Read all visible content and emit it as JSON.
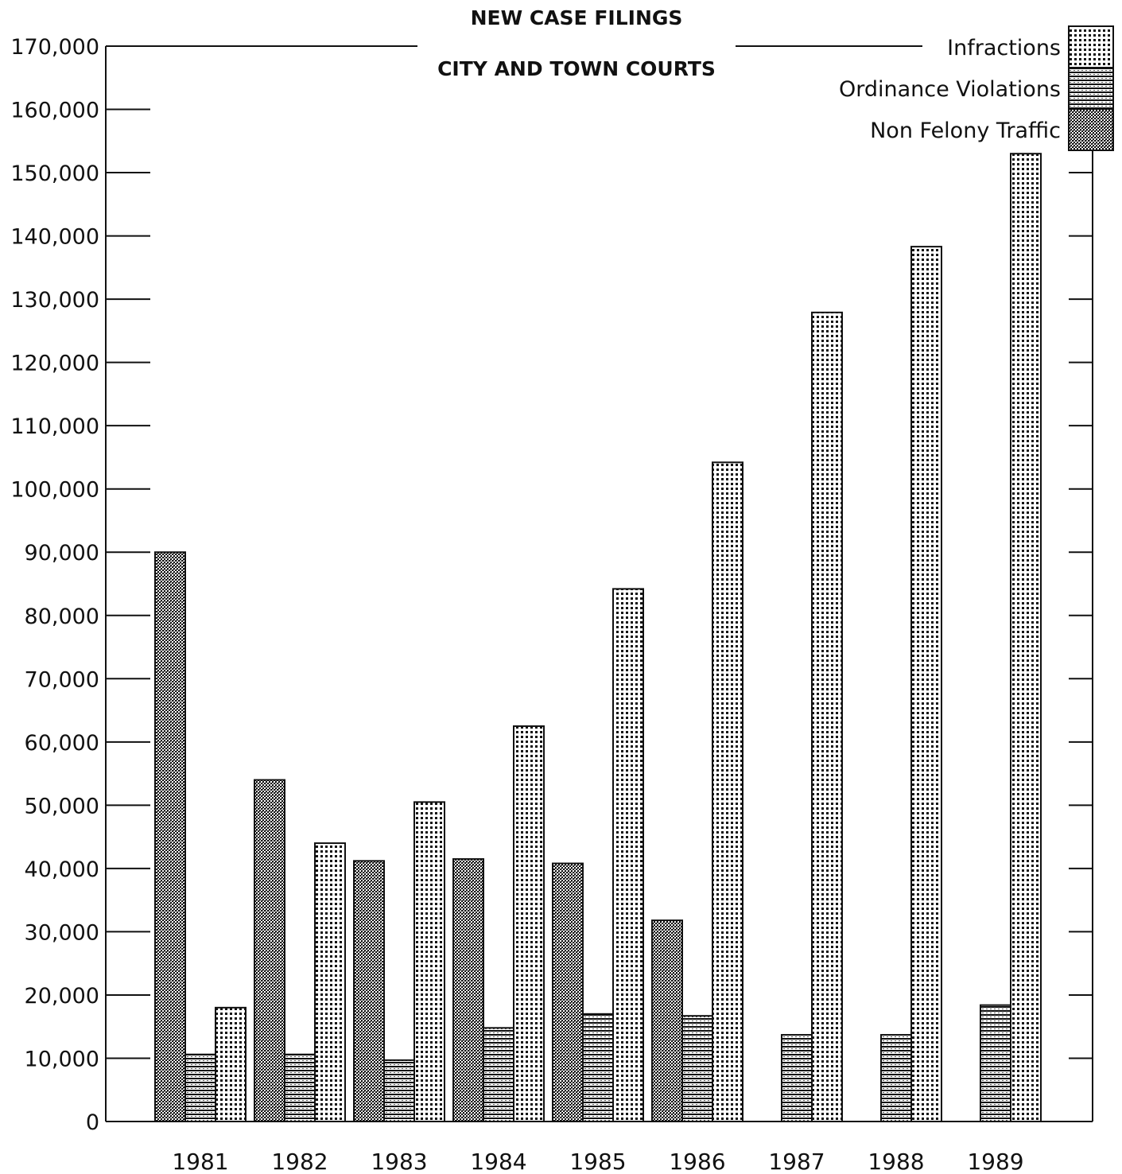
{
  "chart_data": {
    "type": "bar",
    "title": "NEW CASE FILINGS",
    "subtitle": "CITY AND TOWN COURTS",
    "xlabel": "",
    "ylabel": "",
    "categories": [
      "1981",
      "1982",
      "1983",
      "1984",
      "1985",
      "1986",
      "1987",
      "1988",
      "1989"
    ],
    "series": [
      {
        "name": "Non Felony Traffic",
        "pattern": "dense-crosshatch",
        "values": [
          90000,
          54000,
          41200,
          41500,
          40800,
          31800,
          null,
          null,
          null
        ]
      },
      {
        "name": "Ordinance Violations",
        "pattern": "horizontal-lines",
        "values": [
          10600,
          10600,
          9700,
          14800,
          17000,
          16700,
          13700,
          13700,
          18400
        ]
      },
      {
        "name": "Infractions",
        "pattern": "dots",
        "values": [
          18000,
          44000,
          50500,
          62500,
          84200,
          104200,
          127900,
          138300,
          153000
        ]
      }
    ],
    "ylim": [
      0,
      170000
    ],
    "yticks": [
      0,
      10000,
      20000,
      30000,
      40000,
      50000,
      60000,
      70000,
      80000,
      90000,
      100000,
      110000,
      120000,
      130000,
      140000,
      150000,
      160000,
      170000
    ],
    "ytick_labels": [
      "0",
      "10,000",
      "20,000",
      "30,000",
      "40,000",
      "50,000",
      "60,000",
      "70,000",
      "80,000",
      "90,000",
      "100,000",
      "110,000",
      "120,000",
      "130,000",
      "140,000",
      "150,000",
      "160,000",
      "170,000"
    ],
    "grid": false,
    "legend_placement": "top-right",
    "legend_order": [
      "Infractions",
      "Ordinance Violations",
      "Non Felony Traffic"
    ],
    "colors": {
      "ink": "#111111",
      "background": "#ffffff"
    }
  }
}
